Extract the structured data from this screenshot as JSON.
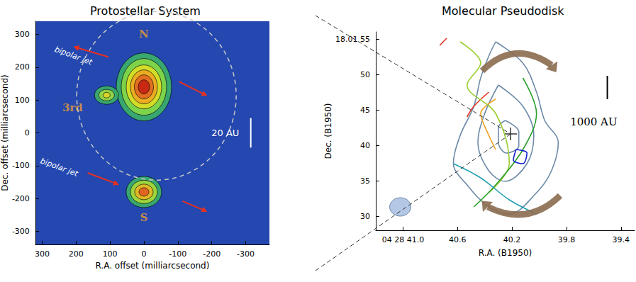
{
  "chart_data": [
    {
      "type": "contour",
      "title": "Protostellar System",
      "x_label": "R.A. offset (milliarcsecond)",
      "y_label": "Dec. offset (milliarcsecond)",
      "xlim": [
        320,
        -370
      ],
      "ylim": [
        -340,
        340
      ],
      "xticks": [
        300,
        200,
        100,
        0,
        -100,
        -200,
        -300
      ],
      "yticks": [
        -300,
        -200,
        -100,
        0,
        100,
        200,
        300
      ],
      "sources": [
        {
          "label": "N",
          "x": 0,
          "y": 140
        },
        {
          "label": "3rd",
          "x": 110,
          "y": 115
        },
        {
          "label": "S",
          "x": 0,
          "y": -180
        }
      ],
      "jet_labels": [
        "bipolar jet",
        "bipolar jet"
      ],
      "scale_bar": "20 AU"
    },
    {
      "type": "contour",
      "title": "Molecular Pseudodisk",
      "x_label": "R.A. (B1950)",
      "y_label": "Dec. (B1950)",
      "xlim": [
        41.2,
        39.3
      ],
      "ylim": [
        28,
        56
      ],
      "xticks": [
        {
          "value": 41.0,
          "label": "04 28 41.0"
        },
        40.6,
        40.2,
        39.8,
        39.4
      ],
      "yticks": [
        30,
        35,
        40,
        45,
        50,
        {
          "value": 55,
          "label": "18.01 55"
        }
      ],
      "contours": [
        {
          "color": "#6d8aa8",
          "points": [
            [
              40.32,
              54.6
            ],
            [
              40.12,
              51.6
            ],
            [
              40.02,
              47.5
            ],
            [
              39.96,
              43.5
            ],
            [
              39.86,
              40.4
            ],
            [
              39.91,
              36.4
            ],
            [
              40.02,
              33.3
            ],
            [
              40.22,
              30.3
            ],
            [
              40.37,
              31.3
            ],
            [
              40.53,
              34.4
            ],
            [
              40.63,
              37.4
            ],
            [
              40.58,
              41.4
            ],
            [
              40.48,
              45.5
            ],
            [
              40.43,
              49.5
            ],
            [
              40.37,
              52.6
            ],
            [
              40.32,
              54.6
            ]
          ]
        },
        {
          "color": "#6d8aa8",
          "points": [
            [
              40.3,
              48.5
            ],
            [
              40.12,
              45.5
            ],
            [
              40.04,
              41.4
            ],
            [
              40.09,
              37.4
            ],
            [
              40.25,
              34.9
            ],
            [
              40.37,
              36.4
            ],
            [
              40.45,
              40.4
            ],
            [
              40.4,
              44.5
            ],
            [
              40.3,
              48.5
            ]
          ]
        },
        {
          "color": "#6d8aa8",
          "points": [
            [
              40.25,
              43.5
            ],
            [
              40.15,
              41.9
            ],
            [
              40.15,
              39.9
            ],
            [
              40.24,
              38.9
            ],
            [
              40.3,
              40.4
            ],
            [
              40.3,
              42.5
            ],
            [
              40.25,
              43.5
            ]
          ]
        },
        {
          "color": "#e03020",
          "points": [
            [
              40.37,
              47.5
            ],
            [
              40.48,
              45.5
            ],
            [
              40.53,
              44.0
            ]
          ]
        },
        {
          "color": "#e03020",
          "points": [
            [
              40.73,
              54.1
            ],
            [
              40.68,
              55.1
            ]
          ]
        },
        {
          "color": "#f0a020",
          "points": [
            [
              40.32,
              46.5
            ],
            [
              40.43,
              44.5
            ],
            [
              40.37,
              41.4
            ],
            [
              40.32,
              39.4
            ]
          ]
        },
        {
          "color": "#9acd32",
          "points": [
            [
              40.58,
              54.6
            ],
            [
              40.43,
              51.6
            ],
            [
              40.53,
              48.5
            ],
            [
              40.32,
              44.5
            ],
            [
              40.22,
              37.4
            ],
            [
              40.37,
              33.3
            ]
          ]
        },
        {
          "color": "#2ca02c",
          "points": [
            [
              40.12,
              49.5
            ],
            [
              40.02,
              44.5
            ],
            [
              40.12,
              39.4
            ],
            [
              40.32,
              34.4
            ],
            [
              40.48,
              31.3
            ]
          ]
        },
        {
          "color": "#20a0b0",
          "points": [
            [
              40.63,
              37.4
            ],
            [
              40.43,
              35.4
            ],
            [
              40.22,
              32.3
            ],
            [
              40.02,
              30.3
            ]
          ]
        },
        {
          "color": "#1020d0",
          "points": [
            [
              40.17,
              39.4
            ],
            [
              40.09,
              38.9
            ],
            [
              40.12,
              37.4
            ],
            [
              40.19,
              37.9
            ],
            [
              40.17,
              39.4
            ]
          ]
        }
      ],
      "center": [
        40.21,
        41.6
      ],
      "scale_bar": "1000 AU"
    }
  ]
}
